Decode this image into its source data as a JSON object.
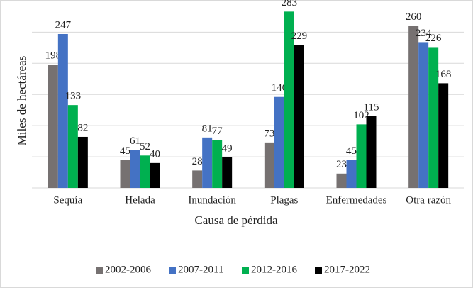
{
  "chart_data": {
    "type": "bar",
    "x_label": "Causa de pérdida",
    "y_label": "Miles de hectáreas",
    "categories": [
      "Sequía",
      "Helada",
      "Inundación",
      "Plagas",
      "Enfermedades",
      "Otra razón"
    ],
    "series": [
      {
        "name": "2002-2006",
        "color": "#767171",
        "values": [
          198,
          45,
          28,
          73,
          23,
          260
        ]
      },
      {
        "name": "2007-2011",
        "color": "#4472c4",
        "values": [
          247,
          61,
          81,
          146,
          45,
          234
        ]
      },
      {
        "name": "2012-2016",
        "color": "#00b050",
        "values": [
          133,
          52,
          77,
          283,
          102,
          226
        ]
      },
      {
        "name": "2017-2022",
        "color": "#000000",
        "values": [
          82,
          40,
          49,
          229,
          115,
          168
        ]
      }
    ],
    "ylim": [
      0,
      280
    ],
    "yticks": [
      0,
      50,
      100,
      150,
      200,
      250
    ],
    "grid": true,
    "legend": "bottom"
  }
}
